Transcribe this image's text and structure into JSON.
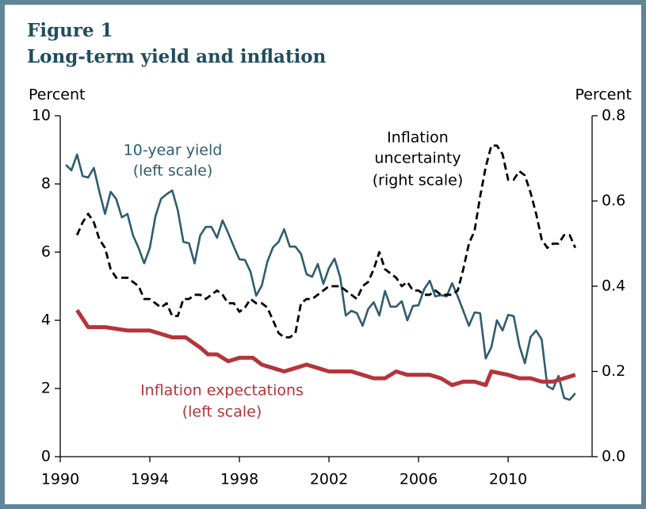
{
  "chart_data": {
    "type": "line",
    "title": "Figure 1",
    "subtitle": "Long-term yield and inflation",
    "ylabel": "Percent",
    "y2label": "Percent",
    "annotations": [
      "10-year yield",
      "(left scale)",
      "Inflation",
      "uncertainty",
      "(right scale)",
      "Inflation expectations",
      "(left scale)"
    ],
    "xlim": [
      1990,
      2013.75
    ],
    "xticks": [
      1990,
      1994,
      1998,
      2002,
      2006,
      2010
    ],
    "ylim": [
      0,
      10
    ],
    "yticks": [
      0,
      2,
      4,
      6,
      8,
      10
    ],
    "y2lim": [
      0,
      0.8
    ],
    "y2ticks": [
      {
        "value": 0,
        "label": "0.0"
      },
      0.2,
      0.4,
      0.6,
      0.8
    ],
    "series": [
      {
        "name": "10-year yield",
        "color": "#2f5d6e",
        "axis": "y",
        "x": [
          1990.25,
          1990.5,
          1990.75,
          1991,
          1991.25,
          1991.5,
          1991.75,
          1992,
          1992.25,
          1992.5,
          1992.75,
          1993,
          1993.25,
          1993.5,
          1993.75,
          1994,
          1994.25,
          1994.5,
          1994.75,
          1995,
          1995.25,
          1995.5,
          1995.75,
          1996,
          1996.25,
          1996.5,
          1996.75,
          1997,
          1997.25,
          1997.5,
          1997.75,
          1998,
          1998.25,
          1998.5,
          1998.75,
          1999,
          1999.25,
          1999.5,
          1999.75,
          2000,
          2000.25,
          2000.5,
          2000.75,
          2001,
          2001.25,
          2001.5,
          2001.75,
          2002,
          2002.25,
          2002.5,
          2002.75,
          2003,
          2003.25,
          2003.5,
          2003.75,
          2004,
          2004.25,
          2004.5,
          2004.75,
          2005,
          2005.25,
          2005.5,
          2005.75,
          2006,
          2006.25,
          2006.5,
          2006.75,
          2007,
          2007.25,
          2007.5,
          2007.75,
          2008,
          2008.25,
          2008.5,
          2008.75,
          2009,
          2009.25,
          2009.5,
          2009.75,
          2010,
          2010.25,
          2010.5,
          2010.75,
          2011,
          2011.25,
          2011.5,
          2011.75,
          2012,
          2012.25,
          2012.5,
          2012.75,
          2013
        ],
        "values": [
          8.56,
          8.4,
          8.86,
          8.23,
          8.19,
          8.47,
          7.77,
          7.12,
          7.77,
          7.56,
          7.02,
          7.12,
          6.49,
          6.12,
          5.67,
          6.12,
          7.05,
          7.56,
          7.7,
          7.81,
          7.23,
          6.3,
          6.26,
          5.67,
          6.49,
          6.74,
          6.74,
          6.42,
          6.93,
          6.56,
          6.16,
          5.79,
          5.77,
          5.42,
          4.72,
          5.02,
          5.72,
          6.14,
          6.3,
          6.67,
          6.16,
          6.16,
          5.95,
          5.35,
          5.28,
          5.65,
          5.07,
          5.53,
          5.81,
          5.26,
          4.14,
          4.28,
          4.21,
          3.84,
          4.33,
          4.53,
          4.14,
          4.86,
          4.4,
          4.4,
          4.56,
          4.0,
          4.42,
          4.44,
          4.91,
          5.16,
          4.7,
          4.74,
          4.7,
          5.09,
          4.7,
          4.28,
          3.84,
          4.23,
          4.21,
          2.88,
          3.21,
          4.0,
          3.7,
          4.16,
          4.12,
          3.26,
          2.74,
          3.51,
          3.7,
          3.44,
          2.07,
          1.98,
          2.37,
          1.72,
          1.67,
          1.86
        ]
      },
      {
        "name": "Inflation uncertainty",
        "color": "#000000",
        "axis": "y2",
        "dashed": true,
        "x": [
          1990.75,
          1991,
          1991.25,
          1991.5,
          1991.75,
          1992,
          1992.25,
          1992.5,
          1992.75,
          1993,
          1993.25,
          1993.5,
          1993.75,
          1994,
          1994.25,
          1994.5,
          1994.75,
          1995,
          1995.25,
          1995.5,
          1995.75,
          1996,
          1996.25,
          1996.5,
          1996.75,
          1997,
          1997.25,
          1997.5,
          1997.75,
          1998,
          1998.25,
          1998.5,
          1998.75,
          1999,
          1999.25,
          1999.5,
          1999.75,
          2000,
          2000.25,
          2000.5,
          2000.75,
          2001,
          2001.25,
          2001.5,
          2001.75,
          2002,
          2002.25,
          2002.5,
          2002.75,
          2003,
          2003.25,
          2003.5,
          2003.75,
          2004,
          2004.25,
          2004.5,
          2004.75,
          2005,
          2005.25,
          2005.5,
          2005.75,
          2006,
          2006.25,
          2006.5,
          2006.75,
          2007,
          2007.25,
          2007.5,
          2007.75,
          2008,
          2008.25,
          2008.5,
          2008.75,
          2009,
          2009.25,
          2009.5,
          2009.75,
          2010,
          2010.25,
          2010.5,
          2010.75,
          2011,
          2011.25,
          2011.5,
          2011.75,
          2012,
          2012.25,
          2012.5,
          2012.75,
          2013
        ],
        "values": [
          0.52,
          0.55,
          0.57,
          0.55,
          0.51,
          0.49,
          0.44,
          0.42,
          0.42,
          0.42,
          0.41,
          0.4,
          0.37,
          0.37,
          0.36,
          0.35,
          0.36,
          0.33,
          0.33,
          0.37,
          0.37,
          0.38,
          0.38,
          0.37,
          0.38,
          0.39,
          0.38,
          0.36,
          0.36,
          0.34,
          0.35,
          0.37,
          0.36,
          0.36,
          0.35,
          0.32,
          0.29,
          0.28,
          0.28,
          0.29,
          0.36,
          0.37,
          0.37,
          0.38,
          0.39,
          0.4,
          0.4,
          0.4,
          0.39,
          0.38,
          0.37,
          0.4,
          0.41,
          0.44,
          0.48,
          0.44,
          0.43,
          0.42,
          0.4,
          0.41,
          0.39,
          0.39,
          0.38,
          0.38,
          0.39,
          0.38,
          0.38,
          0.38,
          0.39,
          0.44,
          0.5,
          0.53,
          0.61,
          0.68,
          0.73,
          0.73,
          0.71,
          0.65,
          0.65,
          0.67,
          0.66,
          0.62,
          0.57,
          0.51,
          0.49,
          0.5,
          0.5,
          0.52,
          0.52,
          0.49
        ]
      },
      {
        "name": "Inflation expectations",
        "color": "#b5343a",
        "axis": "y",
        "x": [
          1990.75,
          1991.25,
          1992,
          1993,
          1994,
          1995,
          1995.6,
          1996.25,
          1996.6,
          1997,
          1997.5,
          1998,
          1998.6,
          1999,
          1999.5,
          2000,
          2000.5,
          2001,
          2001.5,
          2002,
          2003,
          2003.5,
          2004,
          2004.5,
          2005,
          2005.5,
          2006.5,
          2007,
          2007.5,
          2008,
          2008.5,
          2009,
          2009.25,
          2010,
          2010.5,
          2011,
          2011.5,
          2012,
          2012.5,
          2013
        ],
        "values": [
          4.3,
          3.8,
          3.8,
          3.7,
          3.7,
          3.5,
          3.5,
          3.2,
          3.0,
          3.0,
          2.8,
          2.9,
          2.9,
          2.7,
          2.6,
          2.5,
          2.6,
          2.7,
          2.6,
          2.5,
          2.5,
          2.4,
          2.3,
          2.3,
          2.5,
          2.4,
          2.4,
          2.3,
          2.1,
          2.2,
          2.2,
          2.1,
          2.5,
          2.4,
          2.3,
          2.3,
          2.2,
          2.2,
          2.3,
          2.4
        ]
      }
    ]
  }
}
